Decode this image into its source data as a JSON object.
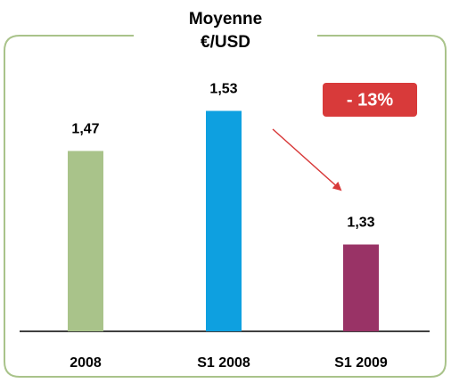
{
  "chart_data": {
    "type": "bar",
    "title": [
      "Moyenne",
      "€/USD"
    ],
    "categories": [
      "2008",
      "S1 2008",
      "S1 2009"
    ],
    "values": [
      1.47,
      1.53,
      1.33
    ],
    "value_labels": [
      "1,47",
      "1,53",
      "1,33"
    ],
    "colors": [
      "#a9c38a",
      "#0ea0e0",
      "#993366"
    ],
    "ylim": [
      1.2,
      1.6
    ],
    "annotation": "- 13%",
    "annotation_color": "#d83a3a"
  }
}
